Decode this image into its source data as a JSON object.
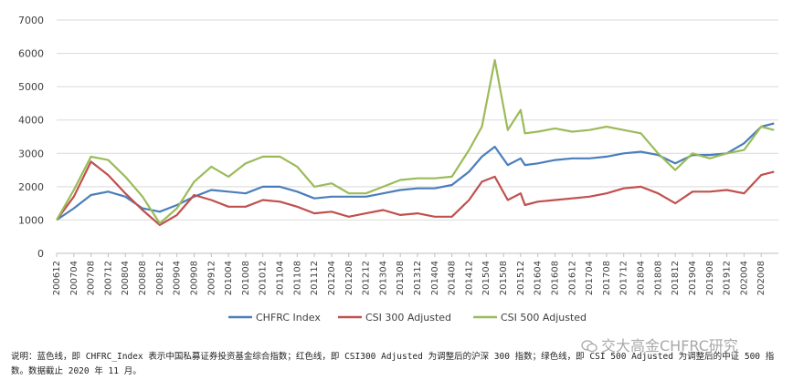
{
  "chart_data": {
    "type": "line",
    "ylim": [
      0,
      7000
    ],
    "yticks": [
      "0",
      "1000",
      "2000",
      "3000",
      "4000",
      "5000",
      "6000",
      "7000"
    ],
    "grid": true,
    "legend_position": "bottom",
    "x_tick_labels": [
      "200612",
      "200704",
      "200708",
      "200712",
      "200804",
      "200808",
      "200812",
      "200904",
      "200908",
      "200912",
      "201004",
      "201008",
      "201012",
      "201104",
      "201108",
      "201112",
      "201204",
      "201208",
      "201212",
      "201304",
      "201308",
      "201312",
      "201404",
      "201408",
      "201412",
      "201504",
      "201508",
      "201512",
      "201604",
      "201608",
      "201612",
      "201704",
      "201708",
      "201712",
      "201804",
      "201808",
      "201812",
      "201904",
      "201908",
      "201912",
      "202004",
      "202008"
    ],
    "x": [
      "2006-12",
      "2007-04",
      "2007-08",
      "2007-12",
      "2008-04",
      "2008-08",
      "2008-12",
      "2009-04",
      "2009-08",
      "2009-12",
      "2010-04",
      "2010-08",
      "2010-12",
      "2011-04",
      "2011-08",
      "2011-12",
      "2012-04",
      "2012-08",
      "2012-12",
      "2013-04",
      "2013-08",
      "2013-12",
      "2014-04",
      "2014-08",
      "2014-12",
      "2015-03",
      "2015-06",
      "2015-09",
      "2015-12",
      "2016-01",
      "2016-04",
      "2016-08",
      "2016-12",
      "2017-04",
      "2017-08",
      "2017-12",
      "2018-04",
      "2018-08",
      "2018-12",
      "2019-04",
      "2019-08",
      "2019-12",
      "2020-04",
      "2020-08",
      "2020-11"
    ],
    "series": [
      {
        "name": "CHFRC Index",
        "color": "#4a7ebb",
        "values": [
          1000,
          1350,
          1750,
          1850,
          1700,
          1350,
          1250,
          1450,
          1700,
          1900,
          1850,
          1800,
          2000,
          2000,
          1850,
          1650,
          1700,
          1700,
          1700,
          1800,
          1900,
          1950,
          1950,
          2050,
          2450,
          2900,
          3200,
          2650,
          2850,
          2650,
          2700,
          2800,
          2850,
          2850,
          2900,
          3000,
          3050,
          2950,
          2700,
          2950,
          2950,
          3000,
          3300,
          3800,
          3900
        ]
      },
      {
        "name": "CSI 300 Adjusted",
        "color": "#c0504d",
        "values": [
          1000,
          1700,
          2750,
          2350,
          1800,
          1300,
          850,
          1150,
          1750,
          1600,
          1400,
          1400,
          1600,
          1550,
          1400,
          1200,
          1250,
          1100,
          1200,
          1300,
          1150,
          1200,
          1100,
          1100,
          1600,
          2150,
          2300,
          1600,
          1800,
          1450,
          1550,
          1600,
          1650,
          1700,
          1800,
          1950,
          2000,
          1800,
          1500,
          1850,
          1850,
          1900,
          1800,
          2350,
          2450
        ]
      },
      {
        "name": "CSI 500 Adjusted",
        "color": "#9bbb59",
        "values": [
          1000,
          1900,
          2900,
          2800,
          2300,
          1700,
          900,
          1350,
          2150,
          2600,
          2300,
          2700,
          2900,
          2900,
          2600,
          2000,
          2100,
          1800,
          1800,
          2000,
          2200,
          2250,
          2250,
          2300,
          3100,
          3800,
          5800,
          3700,
          4300,
          3600,
          3650,
          3750,
          3650,
          3700,
          3800,
          3700,
          3600,
          3000,
          2500,
          3000,
          2850,
          3000,
          3100,
          3800,
          3700
        ]
      }
    ]
  },
  "note": "说明：蓝色线，即 CHFRC_Index 表示中国私募证券投资基金综合指数；红色线，即 CSI300 Adjusted 为调整后的沪深 300 指数；绿色线，即 CSI 500 Adjusted 为调整后的中证 500 指数。数据截止 2020 年 11 月。",
  "watermark": "交大高金CHFRC研究"
}
